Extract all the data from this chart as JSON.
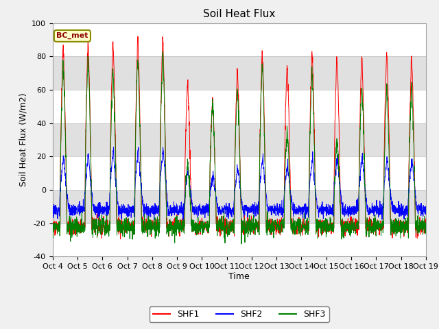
{
  "title": "Soil Heat Flux",
  "ylabel": "Soil Heat Flux (W/m2)",
  "xlabel": "Time",
  "ylim": [
    -40,
    100
  ],
  "yticks": [
    -40,
    -20,
    0,
    20,
    40,
    60,
    80,
    100
  ],
  "xtick_labels": [
    "Oct 4",
    "Oct 5",
    "Oct 6",
    "Oct 7",
    "Oct 8",
    "Oct 9",
    "Oct 10",
    "Oct 11",
    "Oct 12",
    "Oct 13",
    "Oct 14",
    "Oct 15",
    "Oct 16",
    "Oct 17",
    "Oct 18",
    "Oct 19"
  ],
  "annotation": "BC_met",
  "legend_labels": [
    "SHF1",
    "SHF2",
    "SHF3"
  ],
  "line_colors": [
    "red",
    "blue",
    "green"
  ],
  "band_colors": [
    "#ffffff",
    "#e0e0e0"
  ],
  "title_fontsize": 11,
  "axis_label_fontsize": 9,
  "tick_fontsize": 8,
  "fig_facecolor": "#f0f0f0",
  "plot_facecolor": "#ffffff",
  "n_days": 15,
  "n_per_day": 144,
  "shf1_peaks": [
    85,
    88,
    90,
    91,
    90,
    65,
    55,
    71,
    82,
    75,
    83,
    80,
    79,
    84,
    79
  ],
  "shf2_peaks": [
    21,
    22,
    24,
    25,
    26,
    12,
    10,
    14,
    20,
    16,
    20,
    20,
    20,
    20,
    19
  ],
  "shf3_peaks": [
    75,
    80,
    72,
    78,
    82,
    15,
    52,
    60,
    75,
    35,
    70,
    30,
    62,
    60,
    62
  ]
}
